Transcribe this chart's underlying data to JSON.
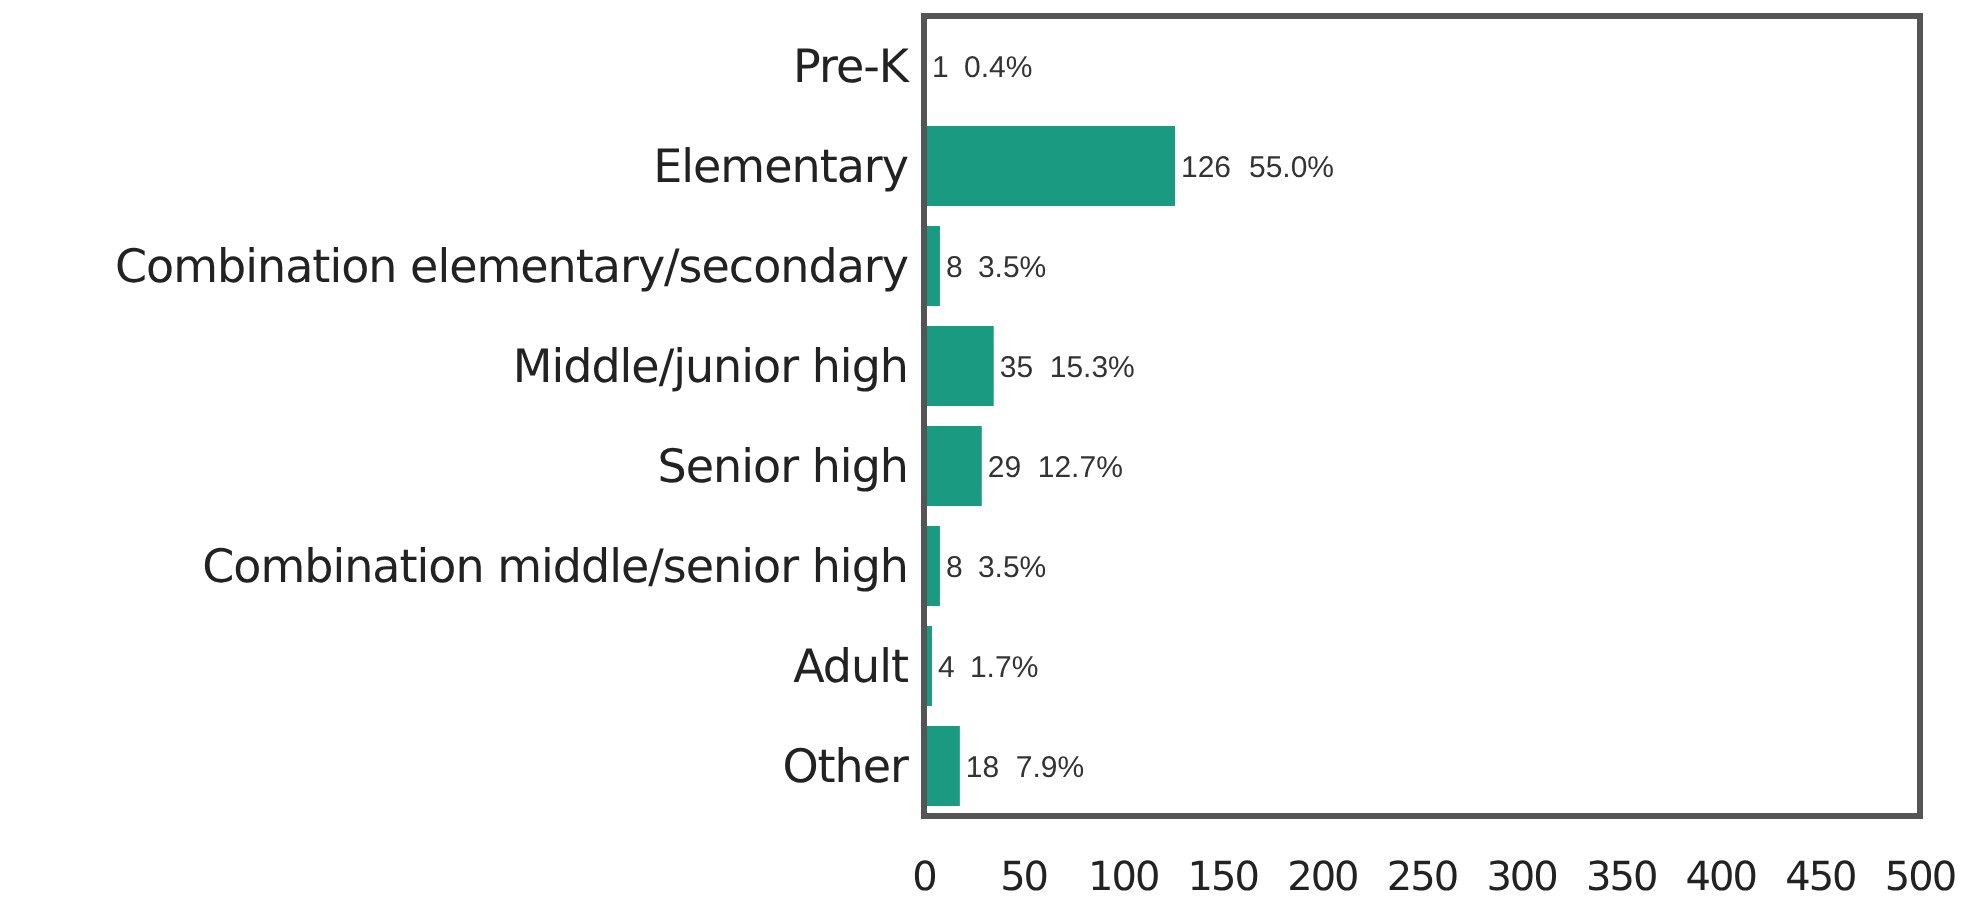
{
  "chart_data": {
    "type": "bar",
    "orientation": "horizontal",
    "categories": [
      "Pre-K",
      "Elementary",
      "Combination elementary/secondary",
      "Middle/junior high",
      "Senior high",
      "Combination middle/senior high",
      "Adult",
      "Other"
    ],
    "values": [
      1,
      126,
      8,
      35,
      29,
      8,
      4,
      18
    ],
    "color": "#1a9a80",
    "data_labels": true,
    "xlim": [
      0,
      500
    ],
    "xticks": [
      0,
      50,
      100,
      150,
      200,
      250,
      300,
      350,
      400,
      450,
      500
    ],
    "grid": false,
    "annotations": [
      {
        "text": "0.4%",
        "x": 1,
        "y": "Pre-K"
      },
      {
        "text": "55.0%",
        "x": 126,
        "y": "Elementary"
      },
      {
        "text": "3.5%",
        "x": 8,
        "y": "Combination elementary/secondary"
      },
      {
        "text": "15.3%",
        "x": 35,
        "y": "Middle/junior high"
      },
      {
        "text": "12.7%",
        "x": 29,
        "y": "Senior high"
      },
      {
        "text": "3.5%",
        "x": 8,
        "y": "Combination middle/senior high"
      },
      {
        "text": "1.7%",
        "x": 4,
        "y": "Adult"
      },
      {
        "text": "7.9%",
        "x": 18,
        "y": "Other"
      }
    ]
  }
}
